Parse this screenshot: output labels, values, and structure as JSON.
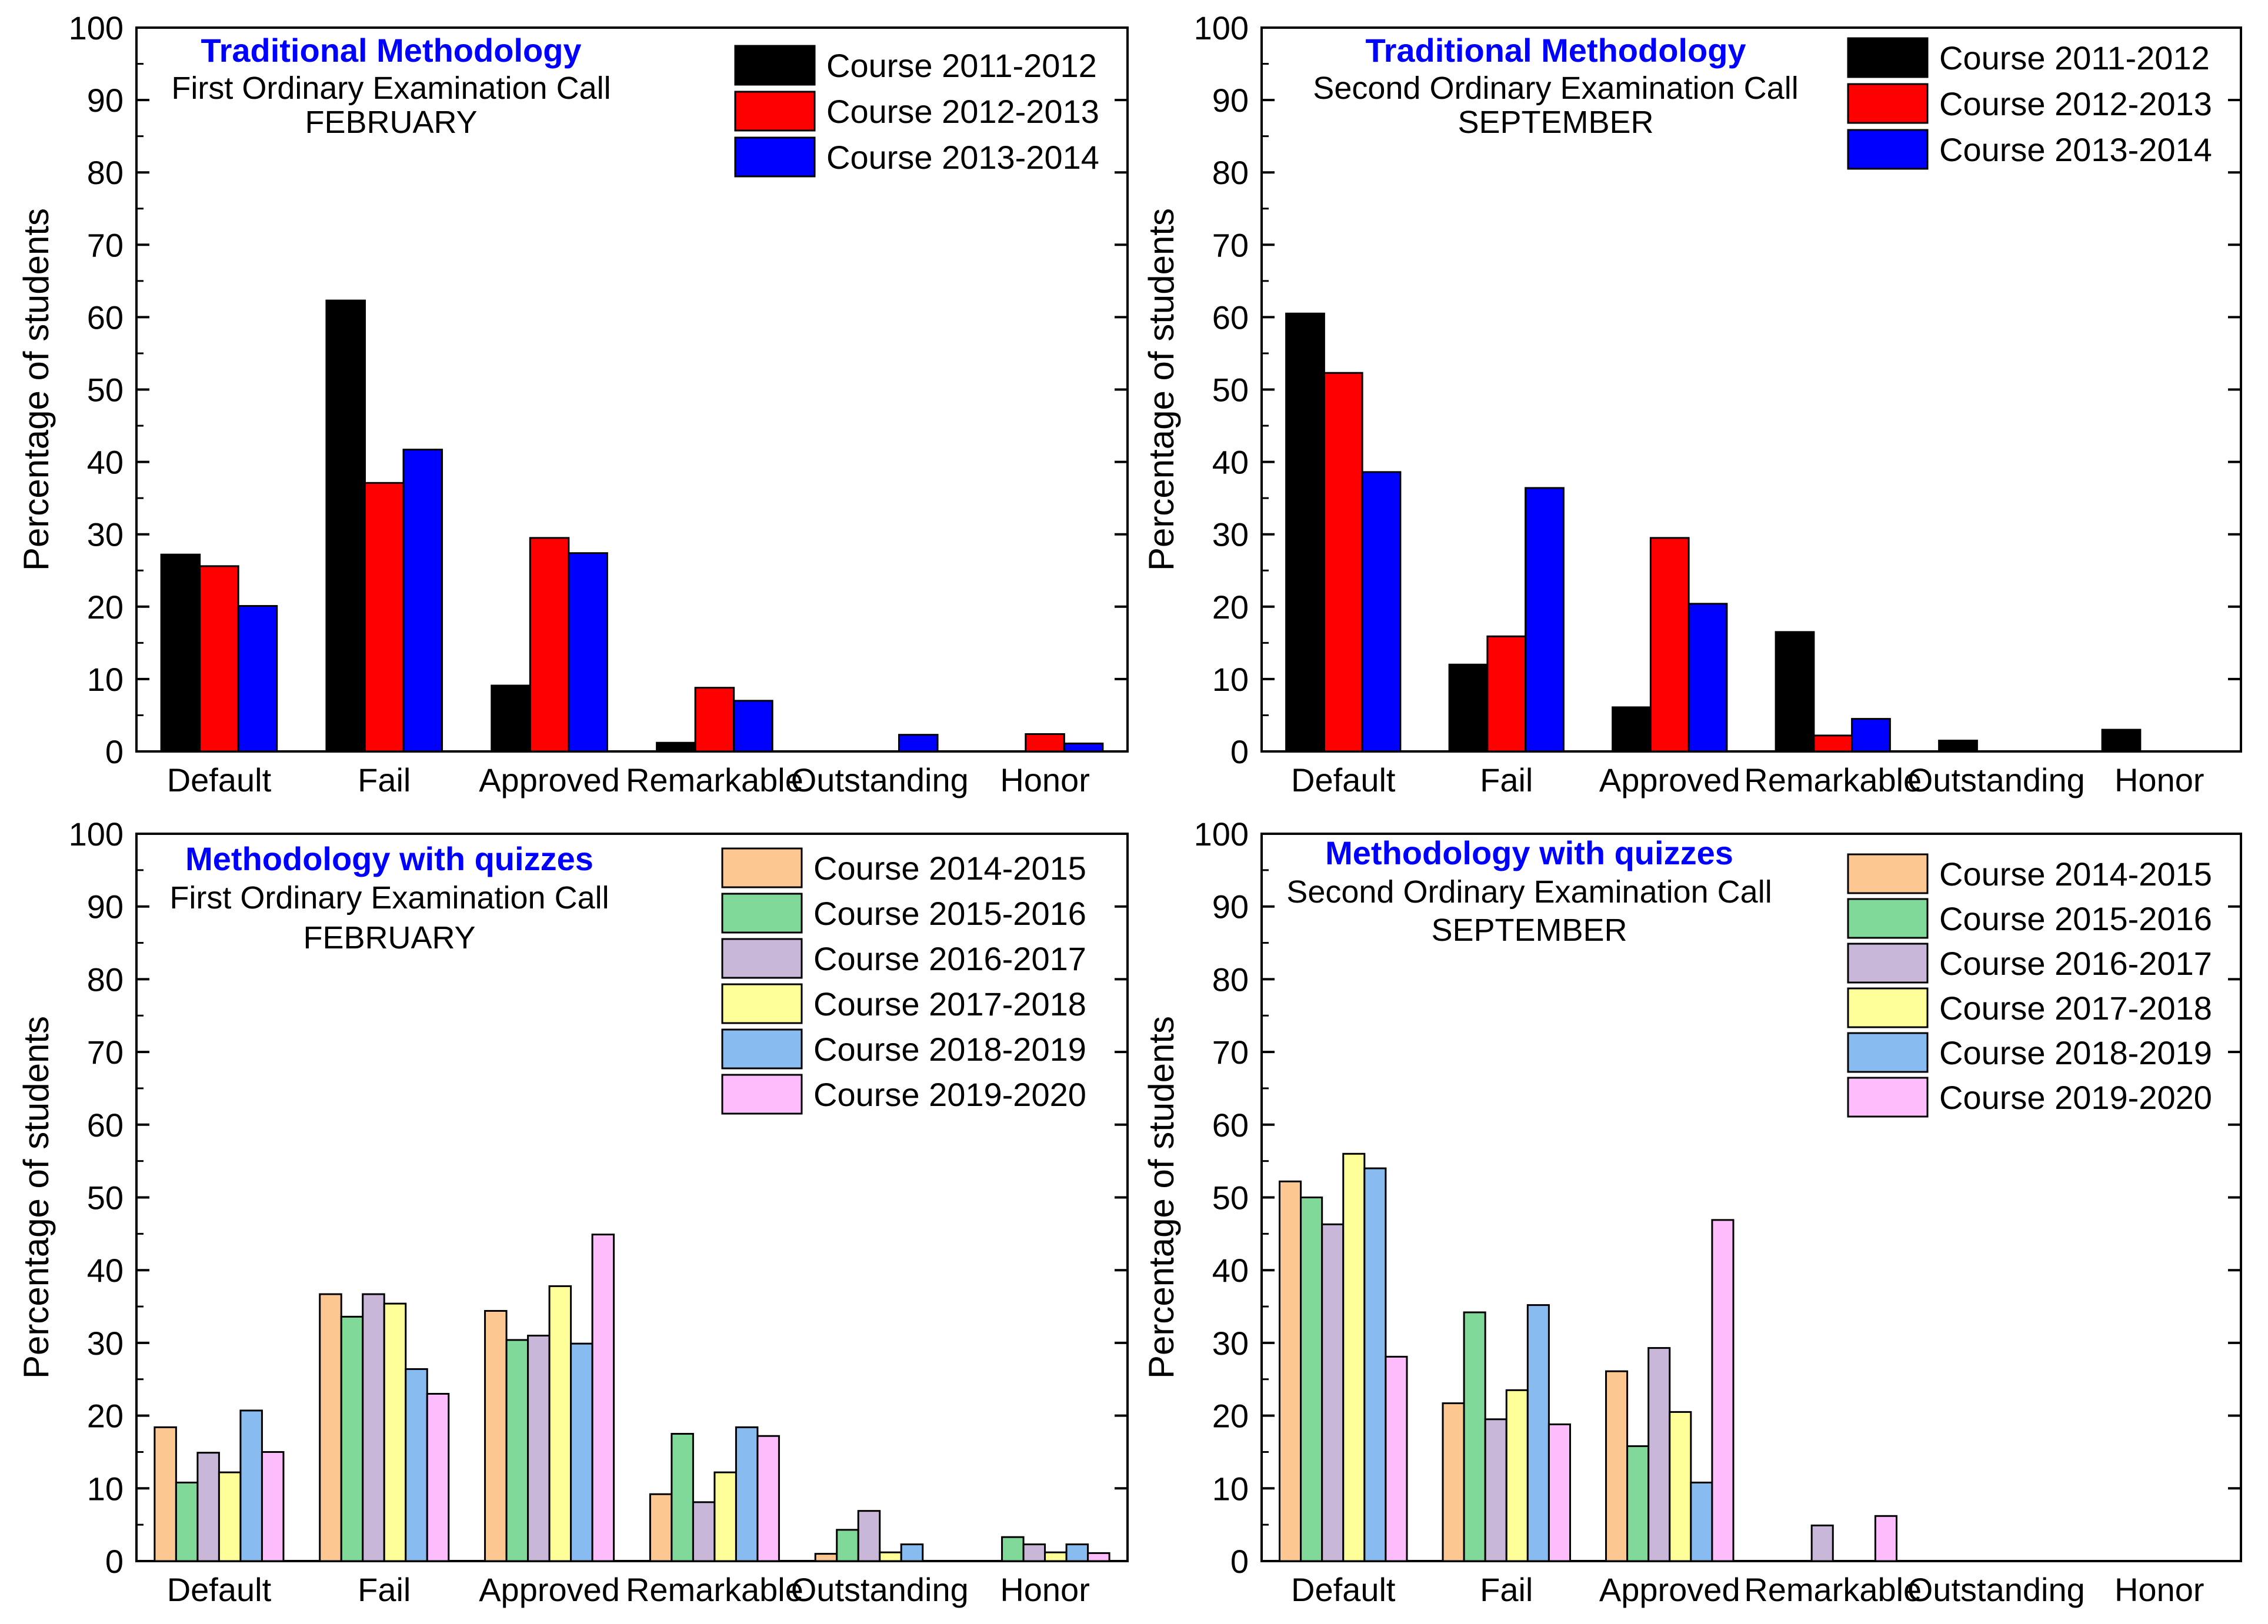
{
  "chart_data": [
    {
      "type": "bar",
      "title": "Traditional Methodology",
      "subtitle": "First Ordinary Examination Call",
      "subtitle2": "FEBRUARY",
      "title_color": "#0000ff",
      "xlabel": "",
      "ylabel": "Percentage of students",
      "ylim": [
        0,
        100
      ],
      "yticks": [
        "0",
        "10",
        "20",
        "30",
        "40",
        "50",
        "60",
        "70",
        "80",
        "90",
        "100"
      ],
      "legend_position": "top-right",
      "categories": [
        "Default",
        "Fail",
        "Approved",
        "Remarkable",
        "Outstanding",
        "Honor"
      ],
      "series": [
        {
          "name": "Course 2011-2012",
          "color": "#000000",
          "values": [
            27.2,
            62.3,
            9.1,
            1.2,
            0,
            0
          ]
        },
        {
          "name": "Course 2012-2013",
          "color": "#ff0000",
          "values": [
            25.6,
            37.1,
            29.5,
            8.8,
            0,
            2.4
          ]
        },
        {
          "name": "Course 2013-2014",
          "color": "#0000ff",
          "values": [
            20.1,
            41.7,
            27.4,
            7.0,
            2.3,
            1.1
          ]
        }
      ]
    },
    {
      "type": "bar",
      "title": "Traditional Methodology",
      "subtitle": "Second Ordinary Examination Call",
      "subtitle2": "SEPTEMBER",
      "title_color": "#0000ff",
      "xlabel": "",
      "ylabel": "Percentage of students",
      "ylim": [
        0,
        100
      ],
      "yticks": [
        "0",
        "10",
        "20",
        "30",
        "40",
        "50",
        "60",
        "70",
        "80",
        "90",
        "100"
      ],
      "legend_position": "top-right",
      "categories": [
        "Default",
        "Fail",
        "Approved",
        "Remarkable",
        "Outstanding",
        "Honor"
      ],
      "series": [
        {
          "name": "Course 2011-2012",
          "color": "#000000",
          "values": [
            60.5,
            12.0,
            6.1,
            16.5,
            1.5,
            3.0
          ]
        },
        {
          "name": "Course 2012-2013",
          "color": "#ff0000",
          "values": [
            52.3,
            15.9,
            29.5,
            2.2,
            0,
            0
          ]
        },
        {
          "name": "Course 2013-2014",
          "color": "#0000ff",
          "values": [
            38.6,
            36.4,
            20.4,
            4.5,
            0,
            0
          ]
        }
      ]
    },
    {
      "type": "bar",
      "title": "Methodology with quizzes",
      "subtitle": "First Ordinary Examination Call",
      "subtitle2": "FEBRUARY",
      "title_color": "#0000ff",
      "xlabel": "",
      "ylabel": "Percentage of students",
      "ylim": [
        0,
        100
      ],
      "yticks": [
        "0",
        "10",
        "20",
        "30",
        "40",
        "50",
        "60",
        "70",
        "80",
        "90",
        "100"
      ],
      "legend_position": "top-right",
      "categories": [
        "Default",
        "Fail",
        "Approved",
        "Remarkable",
        "Outstanding",
        "Honor"
      ],
      "series": [
        {
          "name": "Course 2014-2015",
          "color": "#fcc790",
          "values": [
            18.4,
            36.7,
            34.4,
            9.2,
            1.0,
            0
          ]
        },
        {
          "name": "Course 2015-2016",
          "color": "#80d998",
          "values": [
            10.8,
            33.6,
            30.4,
            17.5,
            4.3,
            3.3
          ]
        },
        {
          "name": "Course 2016-2017",
          "color": "#c9b7da",
          "values": [
            14.9,
            36.7,
            31.0,
            8.1,
            6.9,
            2.3
          ]
        },
        {
          "name": "Course 2017-2018",
          "color": "#ffff99",
          "values": [
            12.2,
            35.4,
            37.8,
            12.2,
            1.2,
            1.2
          ]
        },
        {
          "name": "Course 2018-2019",
          "color": "#88bbf0",
          "values": [
            20.7,
            26.4,
            29.9,
            18.4,
            2.3,
            2.3
          ]
        },
        {
          "name": "Course 2019-2020",
          "color": "#fdbcfb",
          "values": [
            15.0,
            23.0,
            44.9,
            17.2,
            0,
            1.1
          ]
        }
      ]
    },
    {
      "type": "bar",
      "title": "Methodology with quizzes",
      "subtitle": "Second Ordinary Examination Call",
      "subtitle2": "SEPTEMBER",
      "title_color": "#0000ff",
      "xlabel": "",
      "ylabel": "Percentage of students",
      "ylim": [
        0,
        100
      ],
      "yticks": [
        "0",
        "10",
        "20",
        "30",
        "40",
        "50",
        "60",
        "70",
        "80",
        "90",
        "100"
      ],
      "legend_position": "top-right",
      "categories": [
        "Default",
        "Fail",
        "Approved",
        "Remarkable",
        "Outstanding",
        "Honor"
      ],
      "series": [
        {
          "name": "Course 2014-2015",
          "color": "#fcc790",
          "values": [
            52.2,
            21.7,
            26.1,
            0,
            0,
            0
          ]
        },
        {
          "name": "Course 2015-2016",
          "color": "#80d998",
          "values": [
            50.0,
            34.2,
            15.8,
            0,
            0,
            0
          ]
        },
        {
          "name": "Course 2016-2017",
          "color": "#c9b7da",
          "values": [
            46.3,
            19.5,
            29.3,
            4.9,
            0,
            0
          ]
        },
        {
          "name": "Course 2017-2018",
          "color": "#ffff99",
          "values": [
            56.0,
            23.5,
            20.5,
            0,
            0,
            0
          ]
        },
        {
          "name": "Course 2018-2019",
          "color": "#88bbf0",
          "values": [
            54.0,
            35.2,
            10.8,
            0,
            0,
            0
          ]
        },
        {
          "name": "Course 2019-2020",
          "color": "#fdbcfb",
          "values": [
            28.1,
            18.8,
            46.9,
            6.2,
            0,
            0
          ]
        }
      ]
    }
  ]
}
